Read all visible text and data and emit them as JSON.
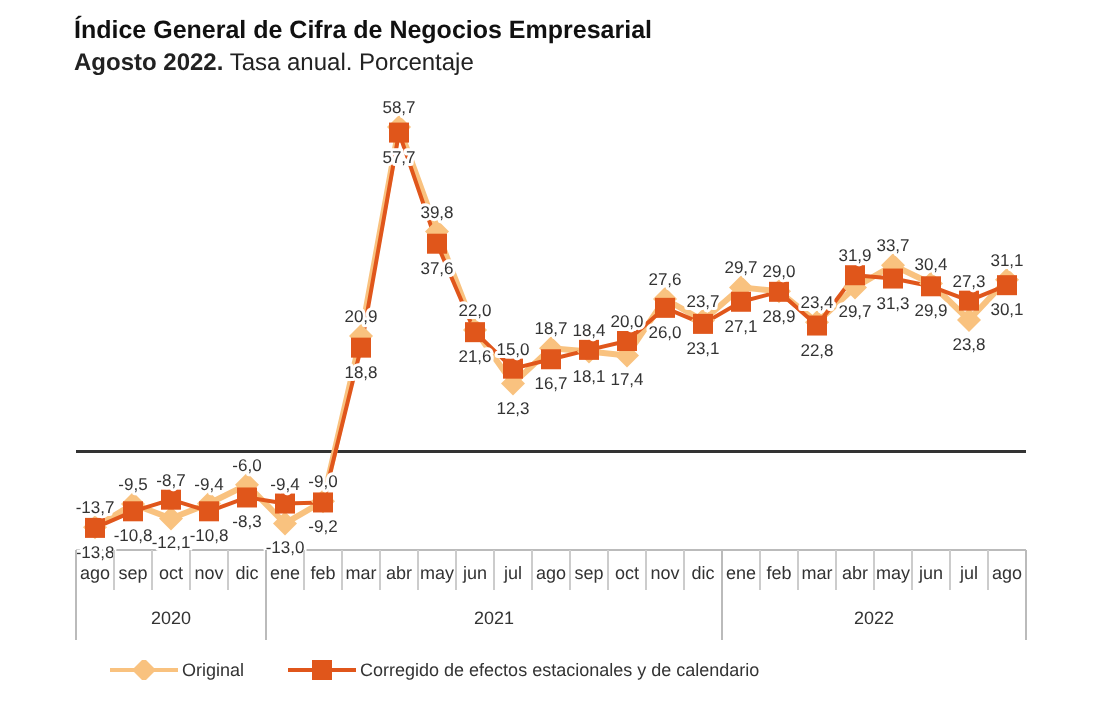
{
  "chart_data": {
    "type": "line",
    "title": "Índice General de Cifra de Negocios Empresarial",
    "subtitle": "Agosto 2022. Tasa anual. Porcentaje",
    "categories": [
      "ago",
      "sep",
      "oct",
      "nov",
      "dic",
      "ene",
      "feb",
      "mar",
      "abr",
      "may",
      "jun",
      "jul",
      "ago",
      "sep",
      "oct",
      "nov",
      "dic",
      "ene",
      "feb",
      "mar",
      "abr",
      "may",
      "jun",
      "jul",
      "ago"
    ],
    "series": [
      {
        "name": "Original",
        "color": "#f9c27f",
        "marker": "diamond",
        "values": [
          -13.7,
          -9.5,
          -12.1,
          -9.4,
          -6.0,
          -13.0,
          -9.0,
          20.9,
          58.7,
          39.8,
          22.0,
          12.3,
          18.7,
          18.1,
          17.4,
          27.6,
          23.7,
          29.7,
          29.0,
          23.4,
          29.7,
          33.7,
          30.4,
          23.8,
          31.1
        ],
        "value_labels": [
          "-13,7",
          "-9,5",
          "-12,1",
          "-9,4",
          "-6,0",
          "-13,0",
          "-9,0",
          "20,9",
          "58,7",
          "39,8",
          "22,0",
          "12,3",
          "18,7",
          "18,1",
          "17,4",
          "27,6",
          "23,7",
          "29,7",
          "29,0",
          "23,4",
          "29,7",
          "33,7",
          "30,4",
          "23,8",
          "31,1"
        ]
      },
      {
        "name": "Corregido de efectos estacionales y de calendario",
        "color": "#e0561b",
        "marker": "square",
        "values": [
          -13.8,
          -10.8,
          -8.7,
          -10.8,
          -8.3,
          -9.4,
          -9.2,
          18.8,
          57.7,
          37.6,
          21.6,
          15.0,
          16.7,
          18.4,
          20.0,
          26.0,
          23.1,
          27.1,
          28.9,
          22.8,
          31.9,
          31.3,
          29.9,
          27.3,
          30.1
        ],
        "value_labels": [
          "-13,8",
          "-10,8",
          "-8,7",
          "-10,8",
          "-8,3",
          "-9,4",
          "-9,2",
          "18,8",
          "57,7",
          "37,6",
          "21,6",
          "15,0",
          "16,7",
          "18,4",
          "20,0",
          "26,0",
          "23,1",
          "27,1",
          "28,9",
          "22,8",
          "31,9",
          "31,3",
          "29,9",
          "27,3",
          "30,1"
        ]
      }
    ],
    "annotations": [
      "2020",
      "2021",
      "2022"
    ],
    "ref_lines": [
      {
        "axis": "y",
        "value": 0,
        "color": "#333333"
      }
    ],
    "tick_labels": "x",
    "legend": "bottom",
    "grid": false
  }
}
